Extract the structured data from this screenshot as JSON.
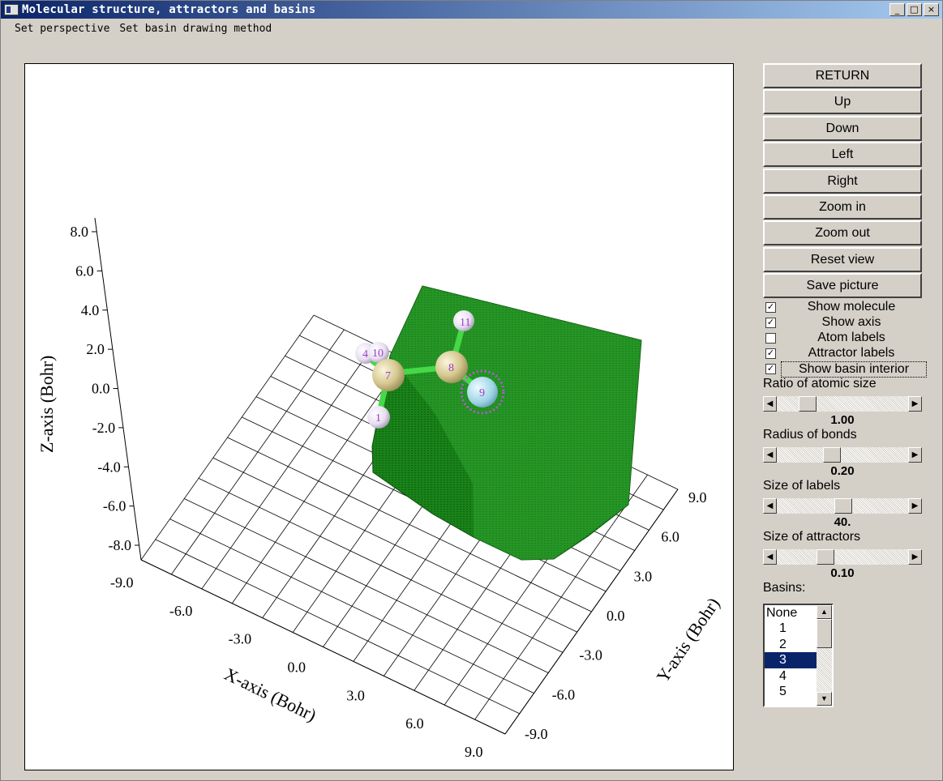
{
  "window": {
    "title": "Molecular structure, attractors and basins",
    "controls": {
      "minimize": "_",
      "maximize": "□",
      "close": "×"
    }
  },
  "menu": {
    "items": [
      "Set perspective",
      "Set basin drawing method"
    ]
  },
  "buttons": {
    "return": "RETURN",
    "up": "Up",
    "down": "Down",
    "left": "Left",
    "right": "Right",
    "zoom_in": "Zoom in",
    "zoom_out": "Zoom out",
    "reset_view": "Reset view",
    "save_picture": "Save picture"
  },
  "checkboxes": {
    "show_molecule": {
      "label": "Show molecule",
      "checked": true
    },
    "show_axis": {
      "label": "Show axis",
      "checked": true
    },
    "atom_labels": {
      "label": "Atom labels",
      "checked": false
    },
    "attractor_labels": {
      "label": "Attractor labels",
      "checked": true
    },
    "show_basin_interior": {
      "label": "Show basin interior",
      "checked": true
    }
  },
  "sliders": {
    "ratio_atomic_size": {
      "label": "Ratio of atomic size",
      "value": "1.00"
    },
    "radius_bonds": {
      "label": "Radius of bonds",
      "value": "0.20"
    },
    "size_labels": {
      "label": "Size of labels",
      "value": "40."
    },
    "size_attractors": {
      "label": "Size of attractors",
      "value": "0.10"
    }
  },
  "basins": {
    "label": "Basins:",
    "items": [
      "None",
      "1",
      "2",
      "3",
      "4",
      "5"
    ],
    "selected": "3"
  },
  "plot": {
    "z_axis_title": "Z-axis (Bohr)",
    "x_axis_title": "X-axis (Bohr)",
    "y_axis_title": "Y-axis (Bohr)",
    "z_ticks": [
      "8.0",
      "6.0",
      "4.0",
      "2.0",
      "0.0",
      "-2.0",
      "-4.0",
      "-6.0",
      "-8.0"
    ],
    "x_ticks": [
      "-9.0",
      "-6.0",
      "-3.0",
      "0.0",
      "3.0",
      "6.0",
      "9.0"
    ],
    "y_ticks": [
      "9.0",
      "6.0",
      "3.0",
      "0.0",
      "-3.0",
      "-6.0",
      "-9.0"
    ],
    "atom_labels": [
      "11",
      "10",
      "4",
      "7",
      "8",
      "9",
      "1"
    ],
    "colors": {
      "basin": "#1f8a1f",
      "bond": "#40d040",
      "atom_heavy": "#d8cc98",
      "atom_h": "#ece6f2",
      "attractor": "#a8d8e8",
      "label": "#9b3ec9"
    }
  }
}
